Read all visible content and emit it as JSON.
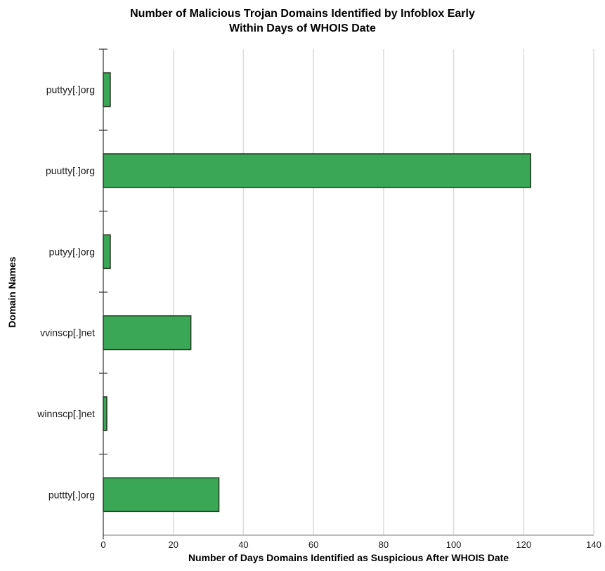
{
  "chart_data": {
    "type": "bar",
    "orientation": "horizontal",
    "title": "Number of Malicious Trojan Domains Identified by Infoblox Early Within Days of WHOIS Date",
    "title_lines": [
      "Number of Malicious Trojan Domains Identified by Infoblox Early",
      "Within Days of WHOIS Date"
    ],
    "categories": [
      "puttyy[.]org",
      "puutty[.]org",
      "putyy[.]org",
      "vvinscp[.]net",
      "winnscp[.]net",
      "puttty[.]org"
    ],
    "values": [
      2,
      122,
      2,
      25,
      1,
      33
    ],
    "xlabel": "Number of Days Domains Identified as Suspicious After WHOIS Date",
    "ylabel": "Domain Names",
    "xlim": [
      0,
      140
    ],
    "xticks": [
      0,
      20,
      40,
      60,
      80,
      100,
      120,
      140
    ],
    "grid": "vertical",
    "legend_position": "none",
    "colors": {
      "bar_fill": "#3aa757",
      "bar_stroke": "#26351f",
      "gridline": "#dcdcdc",
      "category_axis": "#3f3f3f",
      "value_axis": "#a6a6a6",
      "text": "#000000"
    }
  }
}
